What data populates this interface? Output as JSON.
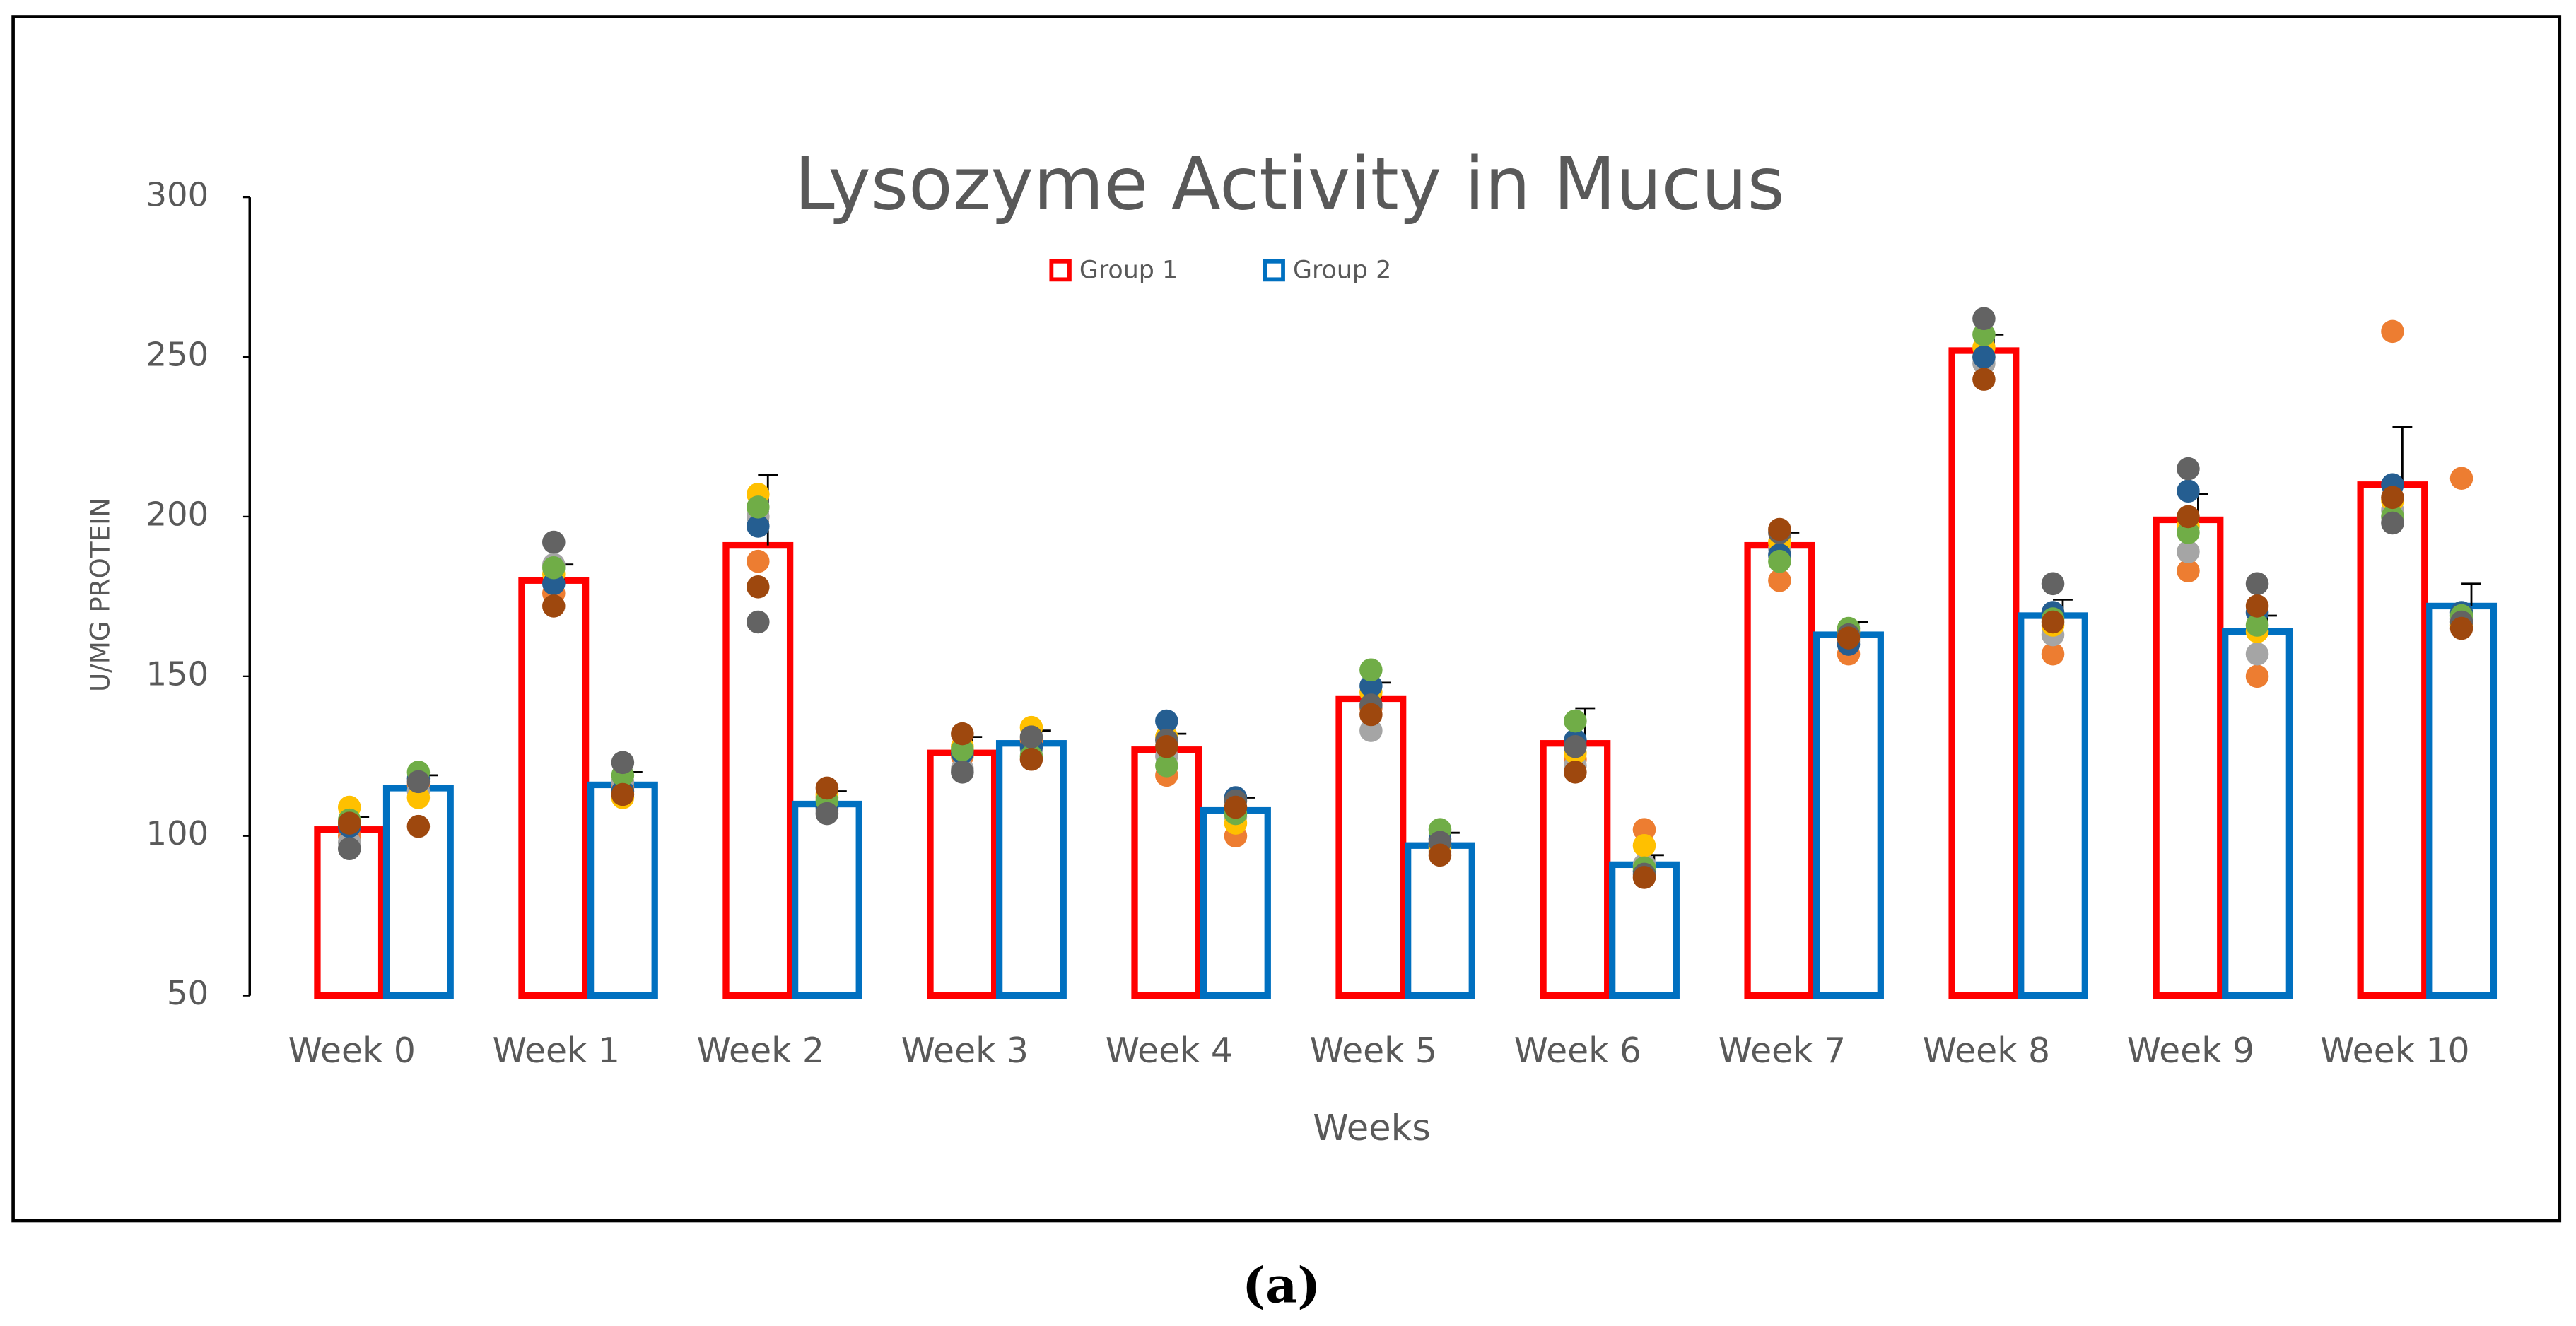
{
  "chart_data": {
    "type": "bar",
    "title": "Lysozyme Activity in Mucus",
    "x_label": "Weeks",
    "y_label": "U/MG PROTEIN",
    "caption": "(a)",
    "categories": [
      "Week 0",
      "Week 1",
      "Week 2",
      "Week 3",
      "Week 4",
      "Week 5",
      "Week 6",
      "Week 7",
      "Week 8",
      "Week 9",
      "Week 10"
    ],
    "ylim": [
      50,
      300
    ],
    "yticks": [
      50,
      100,
      150,
      200,
      250,
      300
    ],
    "legend": "top",
    "point_colors": [
      "#ed7d31",
      "#a5a5a5",
      "#ffc000",
      "#255e91",
      "#70ad47",
      "#636363",
      "#9e480e"
    ],
    "series": [
      {
        "name": "Group 1",
        "color": "#ff0000",
        "values": [
          102,
          180,
          191,
          126,
          127,
          143,
          129,
          191,
          252,
          199,
          210
        ],
        "errors": [
          4,
          5,
          22,
          5,
          5,
          5,
          11,
          4,
          5,
          8,
          18
        ],
        "points": [
          [
            100,
            98,
            109,
            103,
            105,
            96,
            104
          ],
          [
            176,
            185,
            182,
            179,
            184,
            192,
            172
          ],
          [
            186,
            200,
            207,
            197,
            203,
            167,
            178
          ],
          [
            125,
            121,
            128,
            126,
            127,
            120,
            132
          ],
          [
            119,
            125,
            131,
            136,
            122,
            130,
            128
          ],
          [
            140,
            133,
            145,
            147,
            152,
            141,
            138
          ],
          [
            124,
            122,
            126,
            130,
            136,
            128,
            120
          ],
          [
            180,
            190,
            192,
            188,
            186,
            195,
            196
          ],
          [
            250,
            248,
            253,
            250,
            257,
            262,
            243
          ],
          [
            183,
            189,
            197,
            208,
            195,
            215,
            200
          ],
          [
            258,
            202,
            205,
            210,
            200,
            198,
            206
          ]
        ]
      },
      {
        "name": "Group 2",
        "color": "#0070c0",
        "values": [
          115,
          116,
          110,
          129,
          108,
          97,
          91,
          163,
          169,
          164,
          172
        ],
        "errors": [
          4,
          4,
          4,
          4,
          4,
          4,
          3,
          4,
          5,
          5,
          7
        ],
        "points": [
          [
            116,
            114,
            112,
            118,
            120,
            117,
            103
          ],
          [
            115,
            117,
            112,
            114,
            119,
            123,
            113
          ],
          [
            112,
            108,
            113,
            109,
            111,
            107,
            115
          ],
          [
            130,
            127,
            134,
            128,
            125,
            131,
            124
          ],
          [
            100,
            106,
            104,
            112,
            107,
            111,
            109
          ],
          [
            96,
            95,
            97,
            99,
            102,
            98,
            94
          ],
          [
            102,
            91,
            97,
            89,
            90,
            88,
            87
          ],
          [
            157,
            161,
            164,
            160,
            165,
            163,
            162
          ],
          [
            157,
            163,
            166,
            170,
            168,
            179,
            167
          ],
          [
            150,
            157,
            164,
            170,
            166,
            179,
            172
          ],
          [
            212,
            168,
            166,
            170,
            169,
            167,
            165
          ]
        ]
      }
    ]
  }
}
